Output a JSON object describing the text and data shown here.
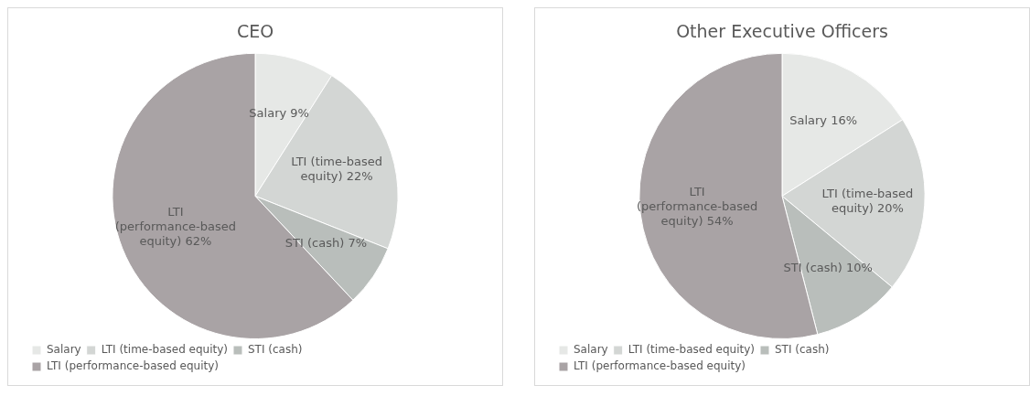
{
  "chart_data": [
    {
      "type": "pie",
      "title": "CEO",
      "categories": [
        "Salary",
        "LTI (time-based equity)",
        "STI (cash)",
        "LTI (performance-based equity)"
      ],
      "values": [
        9,
        22,
        7,
        62
      ],
      "value_labels": [
        "9%",
        "22%",
        "7%",
        "62%"
      ],
      "colors": [
        "#e6e8e6",
        "#d3d6d4",
        "#b9bebb",
        "#a9a3a5"
      ],
      "legend": "bottom"
    },
    {
      "type": "pie",
      "title": "Other Executive Officers",
      "categories": [
        "Salary",
        "LTI (time-based equity)",
        "STI (cash)",
        "LTI (performance-based equity)"
      ],
      "values": [
        16,
        20,
        10,
        54
      ],
      "value_labels": [
        "16%",
        "20%",
        "10%",
        "54%"
      ],
      "colors": [
        "#e6e8e6",
        "#d3d6d4",
        "#b9bebb",
        "#a9a3a5"
      ],
      "legend": "bottom"
    }
  ]
}
